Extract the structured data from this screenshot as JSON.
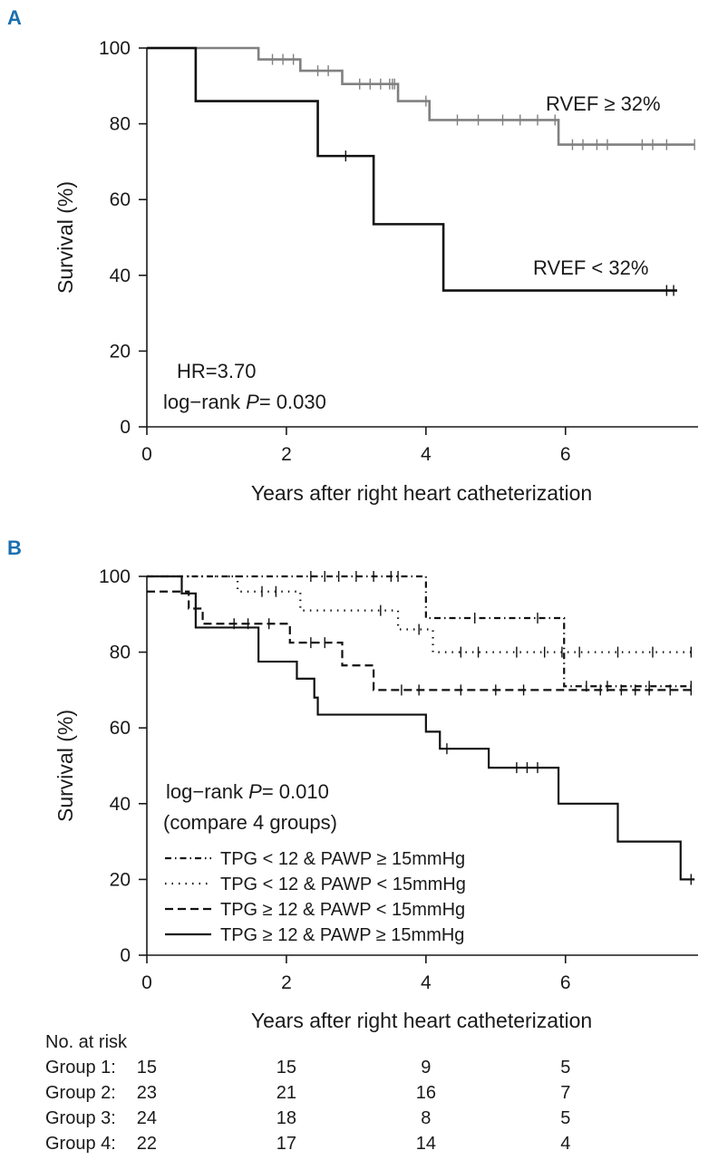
{
  "chart_data": [
    {
      "panel": "A",
      "type": "line",
      "subtype": "kaplan-meier",
      "xlabel": "Years after right heart catheterization",
      "ylabel": "Survival (%)",
      "xlim": [
        0,
        7.9
      ],
      "ylim": [
        0,
        100
      ],
      "xticks": [
        0,
        2,
        4,
        6
      ],
      "yticks": [
        0,
        20,
        40,
        60,
        80,
        100
      ],
      "annotations": [
        {
          "text": "HR=3.70"
        },
        {
          "text_prefix": "log−rank ",
          "italic": "P",
          "text_suffix": "= 0.030"
        }
      ],
      "series": [
        {
          "name": "RVEF ≥ 32%",
          "color": "#808080",
          "steps": [
            [
              0,
              100
            ],
            [
              1.6,
              97
            ],
            [
              2.2,
              94
            ],
            [
              2.8,
              90.5
            ],
            [
              3.6,
              86
            ],
            [
              4.05,
              81
            ],
            [
              5.9,
              74.5
            ],
            [
              7.85,
              74.5
            ]
          ],
          "censor": [
            [
              1.8,
              97
            ],
            [
              1.95,
              97
            ],
            [
              2.1,
              97
            ],
            [
              2.45,
              94
            ],
            [
              2.6,
              94
            ],
            [
              3.05,
              90.5
            ],
            [
              3.2,
              90.5
            ],
            [
              3.35,
              90.5
            ],
            [
              3.48,
              90.5
            ],
            [
              3.52,
              90.5
            ],
            [
              3.55,
              90.5
            ],
            [
              4.0,
              86
            ],
            [
              4.45,
              81
            ],
            [
              4.75,
              81
            ],
            [
              5.1,
              81
            ],
            [
              5.35,
              81
            ],
            [
              5.6,
              81
            ],
            [
              5.85,
              81
            ],
            [
              6.1,
              74.5
            ],
            [
              6.25,
              74.5
            ],
            [
              6.45,
              74.5
            ],
            [
              6.6,
              74.5
            ],
            [
              7.1,
              74.5
            ],
            [
              7.25,
              74.5
            ],
            [
              7.45,
              74.5
            ],
            [
              7.85,
              74.5
            ]
          ]
        },
        {
          "name": "RVEF < 32%",
          "color": "#111111",
          "steps": [
            [
              0,
              100
            ],
            [
              0.7,
              86
            ],
            [
              2.45,
              71.5
            ],
            [
              3.25,
              53.5
            ],
            [
              4.25,
              36
            ],
            [
              7.6,
              36
            ]
          ],
          "censor": [
            [
              2.85,
              71.5
            ],
            [
              7.45,
              36
            ],
            [
              7.55,
              36
            ]
          ]
        }
      ]
    },
    {
      "panel": "B",
      "type": "line",
      "subtype": "kaplan-meier",
      "xlabel": "Years after right heart catheterization",
      "ylabel": "Survival (%)",
      "xlim": [
        0,
        7.9
      ],
      "ylim": [
        0,
        100
      ],
      "xticks": [
        0,
        2,
        4,
        6
      ],
      "yticks": [
        0,
        20,
        40,
        60,
        80,
        100
      ],
      "annotations": [
        {
          "text_prefix": "log−rank ",
          "italic": "P",
          "text_suffix": "= 0.010"
        },
        {
          "text": "(compare 4 groups)"
        }
      ],
      "series": [
        {
          "name": "TPG < 12 & PAWP ≥ 15mmHg",
          "style": "dashdot",
          "steps": [
            [
              0,
              100
            ],
            [
              4.0,
              89
            ],
            [
              5.98,
              71
            ],
            [
              7.85,
              71
            ]
          ],
          "censor": [
            [
              2.35,
              100
            ],
            [
              2.55,
              100
            ],
            [
              2.75,
              100
            ],
            [
              3.0,
              100
            ],
            [
              3.25,
              100
            ],
            [
              3.5,
              100
            ],
            [
              3.6,
              100
            ],
            [
              4.7,
              89
            ],
            [
              5.6,
              89
            ],
            [
              6.3,
              71
            ],
            [
              6.6,
              71
            ],
            [
              7.2,
              71
            ],
            [
              7.8,
              71
            ]
          ]
        },
        {
          "name": "TPG < 12 & PAWP < 15mmHg",
          "style": "dotted",
          "steps": [
            [
              0,
              100
            ],
            [
              1.3,
              96
            ],
            [
              2.2,
              91
            ],
            [
              3.6,
              86
            ],
            [
              4.1,
              80
            ],
            [
              7.85,
              80
            ]
          ],
          "censor": [
            [
              1.65,
              96
            ],
            [
              1.85,
              96
            ],
            [
              3.35,
              91
            ],
            [
              3.9,
              86
            ],
            [
              4.5,
              80
            ],
            [
              4.75,
              80
            ],
            [
              5.3,
              80
            ],
            [
              5.7,
              80
            ],
            [
              5.95,
              80
            ],
            [
              6.2,
              80
            ],
            [
              6.75,
              80
            ],
            [
              7.25,
              80
            ],
            [
              7.8,
              80
            ]
          ]
        },
        {
          "name": "TPG ≥ 12 & PAWP < 15mmHg",
          "style": "dashed",
          "steps": [
            [
              0,
              96
            ],
            [
              0.6,
              91.5
            ],
            [
              0.8,
              87.5
            ],
            [
              2.05,
              82.5
            ],
            [
              2.8,
              76.5
            ],
            [
              3.25,
              70
            ],
            [
              7.85,
              70
            ]
          ],
          "censor": [
            [
              1.25,
              87.5
            ],
            [
              1.45,
              87.5
            ],
            [
              1.75,
              87.5
            ],
            [
              2.35,
              82.5
            ],
            [
              2.55,
              82.5
            ],
            [
              3.65,
              70
            ],
            [
              3.9,
              70
            ],
            [
              4.5,
              70
            ],
            [
              5.0,
              70
            ],
            [
              5.4,
              70
            ],
            [
              6.5,
              70
            ],
            [
              6.8,
              70
            ],
            [
              7.0,
              70
            ],
            [
              7.2,
              70
            ],
            [
              7.5,
              70
            ],
            [
              7.8,
              70
            ]
          ]
        },
        {
          "name": "TPG ≥ 12 & PAWP ≥ 15mmHg",
          "style": "solid",
          "steps": [
            [
              0,
              100
            ],
            [
              0.5,
              95.5
            ],
            [
              0.7,
              86.5
            ],
            [
              1.6,
              77.5
            ],
            [
              2.15,
              73
            ],
            [
              2.4,
              68
            ],
            [
              2.45,
              63.5
            ],
            [
              4.0,
              59
            ],
            [
              4.2,
              54.5
            ],
            [
              4.9,
              49.5
            ],
            [
              5.9,
              40
            ],
            [
              6.75,
              30
            ],
            [
              7.65,
              20
            ],
            [
              7.85,
              20
            ]
          ],
          "censor": [
            [
              4.3,
              54.5
            ],
            [
              5.3,
              49.5
            ],
            [
              5.45,
              49.5
            ],
            [
              5.6,
              49.5
            ],
            [
              7.8,
              20
            ]
          ]
        }
      ],
      "number_at_risk": {
        "header": "No. at risk",
        "rows": [
          {
            "label": "Group 1:",
            "counts": [
              "15",
              "15",
              "9",
              "5"
            ]
          },
          {
            "label": "Group 2:",
            "counts": [
              "23",
              "21",
              "16",
              "7"
            ]
          },
          {
            "label": "Group 3:",
            "counts": [
              "24",
              "18",
              "8",
              "5"
            ]
          },
          {
            "label": "Group 4:",
            "counts": [
              "22",
              "17",
              "14",
              "4"
            ]
          }
        ]
      }
    }
  ]
}
